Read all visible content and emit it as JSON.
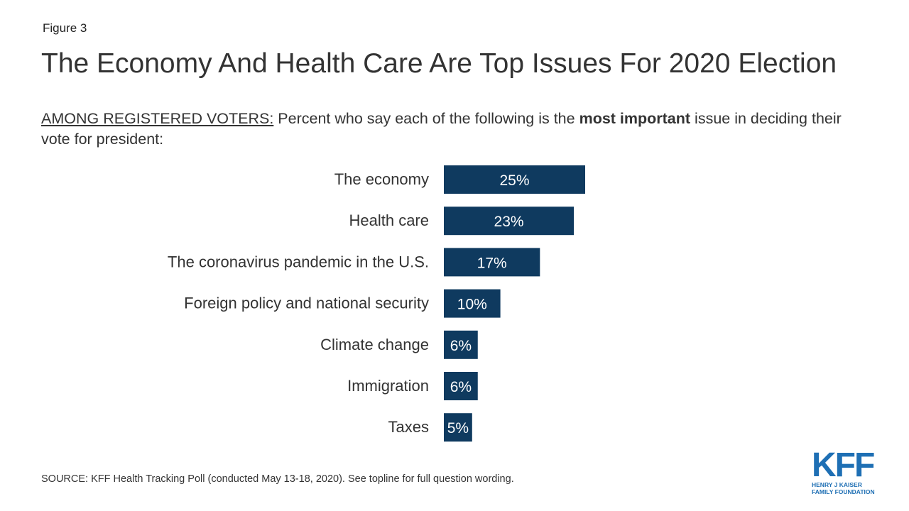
{
  "figure_label": "Figure 3",
  "title": "The Economy And Health Care Are Top Issues For 2020 Election",
  "subtitle": {
    "lead": "AMONG REGISTERED VOTERS:",
    "text_before": " Percent who say each of the following is the ",
    "bold": "most important",
    "text_after": " issue in deciding their vote for president:"
  },
  "chart_data": {
    "type": "bar",
    "orientation": "horizontal",
    "categories": [
      "The economy",
      "Health care",
      "The coronavirus pandemic in the U.S.",
      "Foreign policy and national security",
      "Climate change",
      "Immigration",
      "Taxes"
    ],
    "values": [
      25,
      23,
      17,
      10,
      6,
      6,
      5
    ],
    "value_labels": [
      "25%",
      "23%",
      "17%",
      "10%",
      "6%",
      "6%",
      "5%"
    ],
    "bar_color": "#0f3a5f",
    "grid": false,
    "xlim": [
      0,
      25
    ]
  },
  "source": "SOURCE: KFF Health Tracking Poll (conducted May 13-18, 2020). See topline for full question wording.",
  "logo": {
    "mark": "KFF",
    "line1": "HENRY J KAISER",
    "line2": "FAMILY FOUNDATION",
    "color": "#1e6fb4"
  }
}
